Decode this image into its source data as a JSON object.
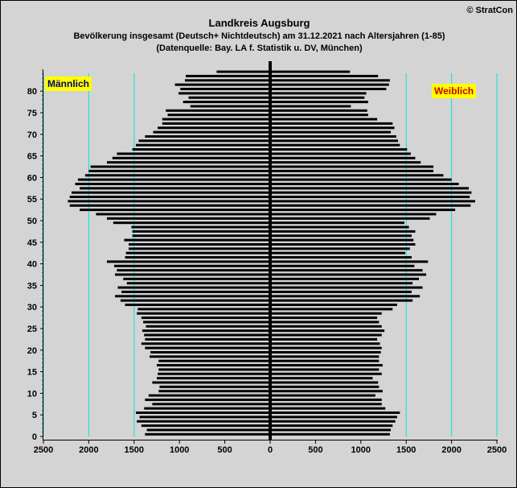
{
  "header": {
    "copyright": "© StratCon",
    "title": "Landkreis Augsburg",
    "subtitle": "Bevölkerung  insgesamt (Deutsch+ Nichtdeutsch) am 31.12.2021 nach Altersjahren (1-85)",
    "source": "(Datenquelle: Bay. LA f. Statistik u. DV, München)"
  },
  "colors": {
    "background": "#d4d4d4",
    "bars": "#000000",
    "gridlines": "#00e5e5",
    "label_bg": "#ffff00",
    "male_text": "#00007a",
    "female_text": "#cc0000"
  },
  "chart_data": {
    "type": "bar",
    "orientation": "horizontal",
    "pyramid": true,
    "title": "Landkreis Augsburg",
    "xlim": [
      -2500,
      2500
    ],
    "ylim": [
      0,
      85
    ],
    "x_ticks": [
      2500,
      2000,
      1500,
      1000,
      500,
      0,
      500,
      1000,
      1500,
      2000,
      2500
    ],
    "y_ticks": [
      0,
      5,
      10,
      15,
      20,
      25,
      30,
      35,
      40,
      45,
      50,
      55,
      60,
      65,
      70,
      75,
      80
    ],
    "grid": "vertical",
    "ages": [
      0,
      1,
      2,
      3,
      4,
      5,
      6,
      7,
      8,
      9,
      10,
      11,
      12,
      13,
      14,
      15,
      16,
      17,
      18,
      19,
      20,
      21,
      22,
      23,
      24,
      25,
      26,
      27,
      28,
      29,
      30,
      31,
      32,
      33,
      34,
      35,
      36,
      37,
      38,
      39,
      40,
      41,
      42,
      43,
      44,
      45,
      46,
      47,
      48,
      49,
      50,
      51,
      52,
      53,
      54,
      55,
      56,
      57,
      58,
      59,
      60,
      61,
      62,
      63,
      64,
      65,
      66,
      67,
      68,
      69,
      70,
      71,
      72,
      73,
      74,
      75,
      76,
      77,
      78,
      79,
      80,
      81,
      82,
      83,
      84
    ],
    "series": [
      {
        "name": "Männlich",
        "values": [
          1380,
          1360,
          1420,
          1470,
          1440,
          1480,
          1390,
          1300,
          1380,
          1340,
          1230,
          1220,
          1300,
          1250,
          1240,
          1230,
          1250,
          1230,
          1330,
          1320,
          1380,
          1420,
          1380,
          1390,
          1410,
          1370,
          1400,
          1420,
          1470,
          1460,
          1600,
          1650,
          1710,
          1640,
          1680,
          1580,
          1620,
          1710,
          1690,
          1720,
          1800,
          1600,
          1590,
          1560,
          1560,
          1610,
          1520,
          1520,
          1530,
          1730,
          1800,
          1920,
          2100,
          2210,
          2230,
          2210,
          2190,
          2100,
          2150,
          2120,
          2040,
          2000,
          1980,
          1800,
          1740,
          1690,
          1520,
          1480,
          1450,
          1380,
          1290,
          1240,
          1190,
          1190,
          1130,
          1150,
          880,
          960,
          900,
          1010,
          990,
          1050,
          940,
          930,
          590
        ]
      },
      {
        "name": "Weiblich",
        "values": [
          1320,
          1330,
          1350,
          1380,
          1400,
          1430,
          1270,
          1230,
          1230,
          1160,
          1240,
          1200,
          1190,
          1130,
          1230,
          1200,
          1240,
          1200,
          1200,
          1220,
          1230,
          1210,
          1180,
          1230,
          1260,
          1230,
          1200,
          1180,
          1230,
          1350,
          1400,
          1570,
          1650,
          1560,
          1680,
          1570,
          1640,
          1720,
          1680,
          1590,
          1740,
          1560,
          1490,
          1540,
          1600,
          1580,
          1560,
          1600,
          1530,
          1480,
          1760,
          1830,
          2040,
          2210,
          2260,
          2200,
          2220,
          2190,
          2080,
          2000,
          1910,
          1800,
          1800,
          1660,
          1600,
          1550,
          1510,
          1430,
          1410,
          1390,
          1330,
          1370,
          1350,
          1180,
          1080,
          1070,
          890,
          1080,
          1040,
          1060,
          1280,
          1310,
          1320,
          1190,
          880
        ]
      }
    ]
  }
}
